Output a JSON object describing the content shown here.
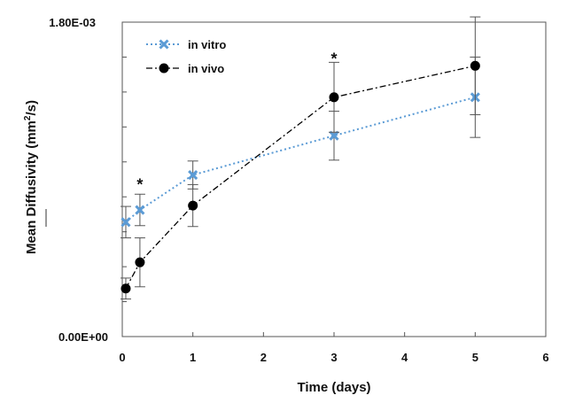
{
  "chart_data": {
    "type": "line",
    "title": "",
    "xlabel": "Time (days)",
    "ylabel_main": "Mean Diffusivity (mm",
    "ylabel_sup": "2",
    "ylabel_tail": "/s)",
    "xlim": [
      0,
      6
    ],
    "ylim": [
      0,
      0.0018
    ],
    "x_ticks": [
      0,
      1,
      2,
      3,
      4,
      5,
      6
    ],
    "x_tick_labels": [
      "0",
      "1",
      "2",
      "3",
      "4",
      "5",
      "6"
    ],
    "y_tick_labels": [
      {
        "value": 0,
        "label": "0.00E+00"
      },
      {
        "value": 0.0018,
        "label": "1.80E-03"
      }
    ],
    "y_minor_ticks": [
      0.0002,
      0.0004,
      0.0006,
      0.0008,
      0.001,
      0.0012,
      0.0014,
      0.0016
    ],
    "grid": false,
    "legend_position": "top-left",
    "series": [
      {
        "name": "in vitro",
        "color": "#5b9bd5",
        "marker": "cross",
        "dash": "dotted",
        "x": [
          0.05,
          0.25,
          1,
          3,
          5
        ],
        "y": [
          0.000655,
          0.000725,
          0.000925,
          0.00115,
          0.00137
        ],
        "err": [
          9e-05,
          9e-05,
          8e-05,
          0.00014,
          0.00023
        ]
      },
      {
        "name": "in vivo",
        "color": "#000000",
        "marker": "circle",
        "dash": "dashdot",
        "x": [
          0.05,
          0.25,
          1,
          3,
          5
        ],
        "y": [
          0.000275,
          0.000425,
          0.00075,
          0.00137,
          0.00155
        ],
        "err": [
          6e-05,
          0.00014,
          0.00012,
          0.0002,
          0.00028
        ]
      }
    ],
    "annotations": [
      {
        "text": "*",
        "x": 0.25,
        "y": 0.00088
      },
      {
        "text": "*",
        "x": 3,
        "y": 0.0016
      }
    ]
  }
}
